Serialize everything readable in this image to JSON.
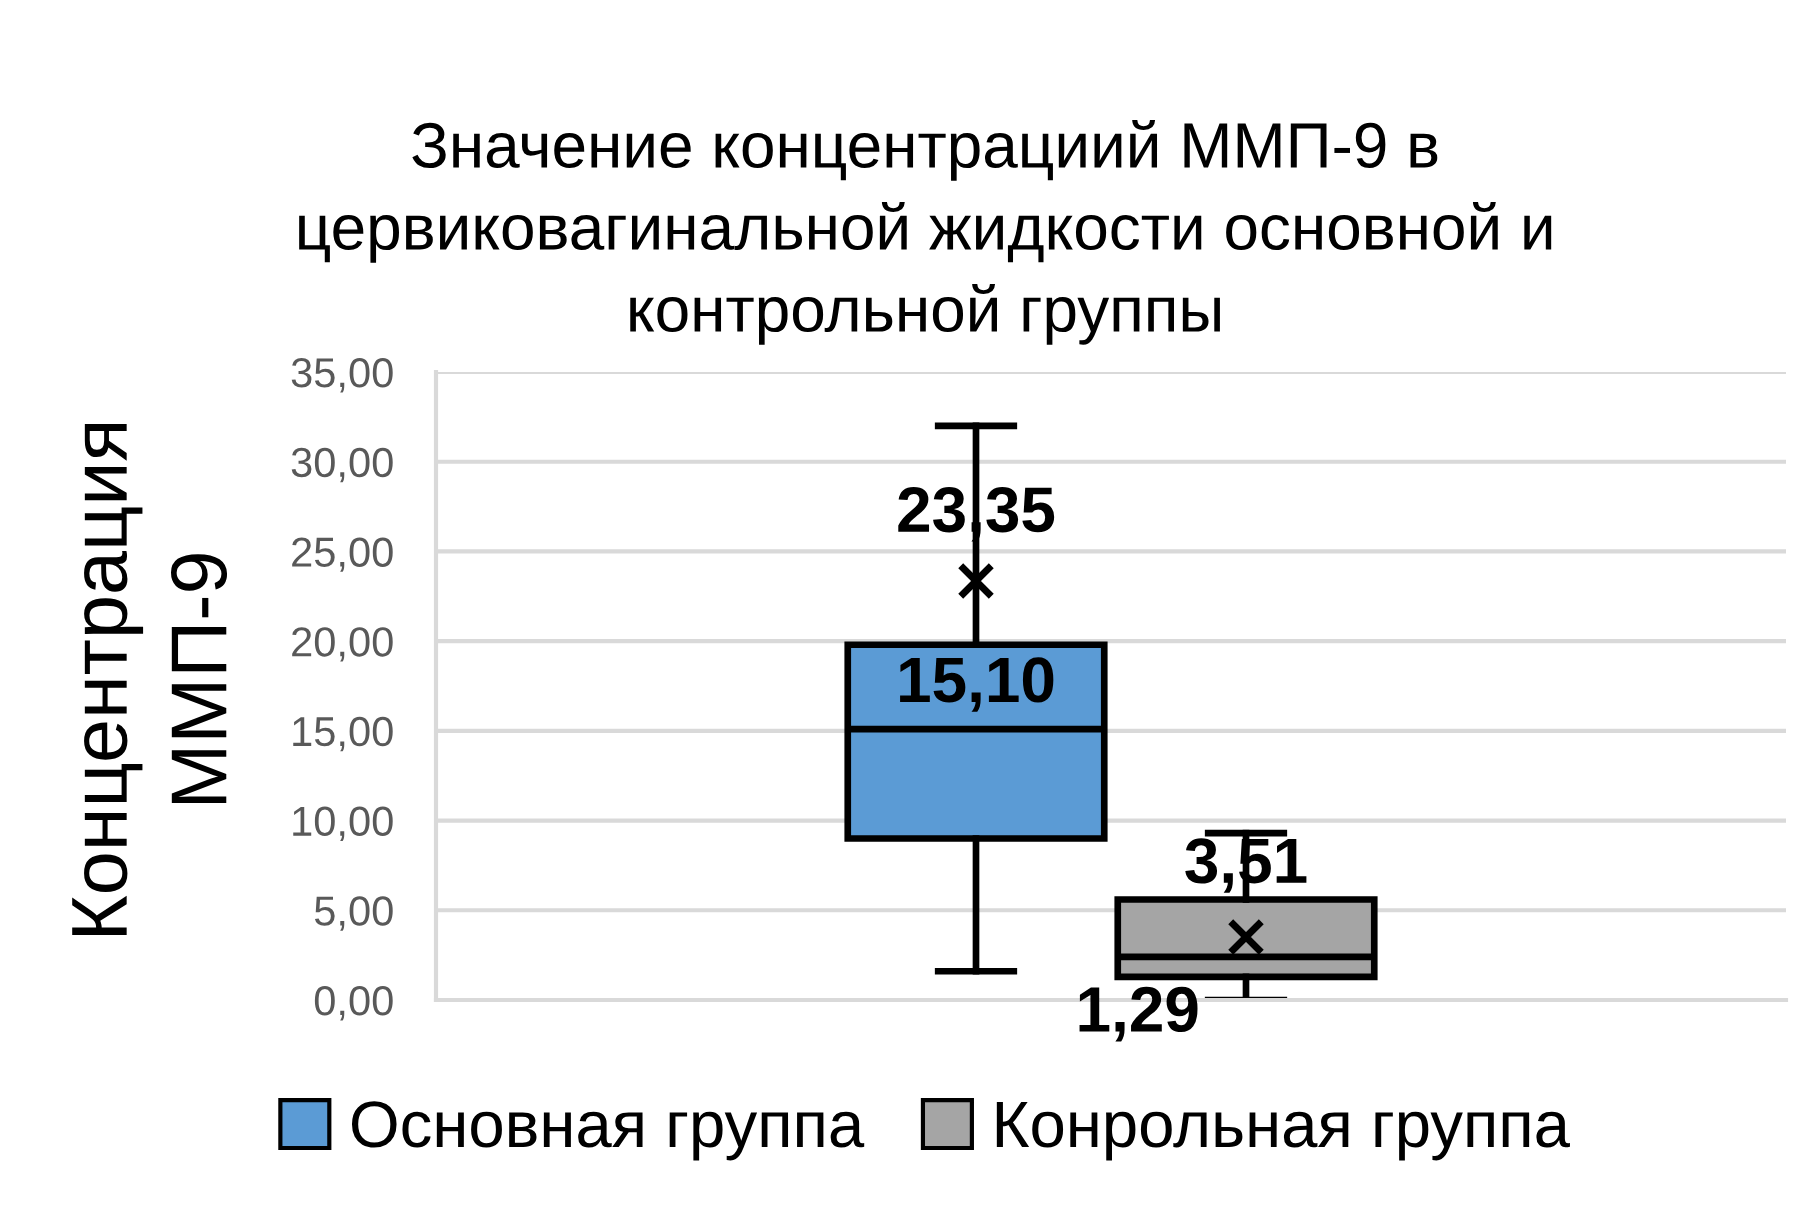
{
  "chart_data": {
    "type": "box",
    "title": "Значение концентрациий ММП-9 в\nцервиковагинальной жидкости основной и\nконтрольной группы",
    "ylabel": "Концентрация\nММП-9",
    "categories": [
      null
    ],
    "series": [
      {
        "name": "Основная группа",
        "color": "#5b9bd5",
        "boxes": [
          {
            "low": 1.6,
            "q1": 9.0,
            "median": 15.1,
            "q3": 19.8,
            "high": 32.0,
            "mean": 23.35
          }
        ]
      },
      {
        "name": "Конрольная группа",
        "color": "#a5a5a5",
        "boxes": [
          {
            "low": 0.0,
            "q1": 1.29,
            "median": 2.4,
            "q3": 5.6,
            "high": 9.3,
            "mean": 3.51
          }
        ]
      }
    ],
    "ylim": [
      0,
      35
    ],
    "yticks": [
      {
        "value": 0,
        "label": "0,00"
      },
      {
        "value": 5,
        "label": "5,00"
      },
      {
        "value": 10,
        "label": "10,00"
      },
      {
        "value": 15,
        "label": "15,00"
      },
      {
        "value": 20,
        "label": "20,00"
      },
      {
        "value": 25,
        "label": "25,00"
      },
      {
        "value": 30,
        "label": "30,00"
      },
      {
        "value": 35,
        "label": "35,00"
      }
    ],
    "grid": "y",
    "legend": "bottom",
    "marker": "cross",
    "tick_labels": "y",
    "annotations": [
      {
        "text": "23,35",
        "y": 23.35
      },
      {
        "text": "15,10",
        "y": 15.1
      },
      "3,51",
      {
        "text": "1,29",
        "y": 1.29
      }
    ]
  }
}
